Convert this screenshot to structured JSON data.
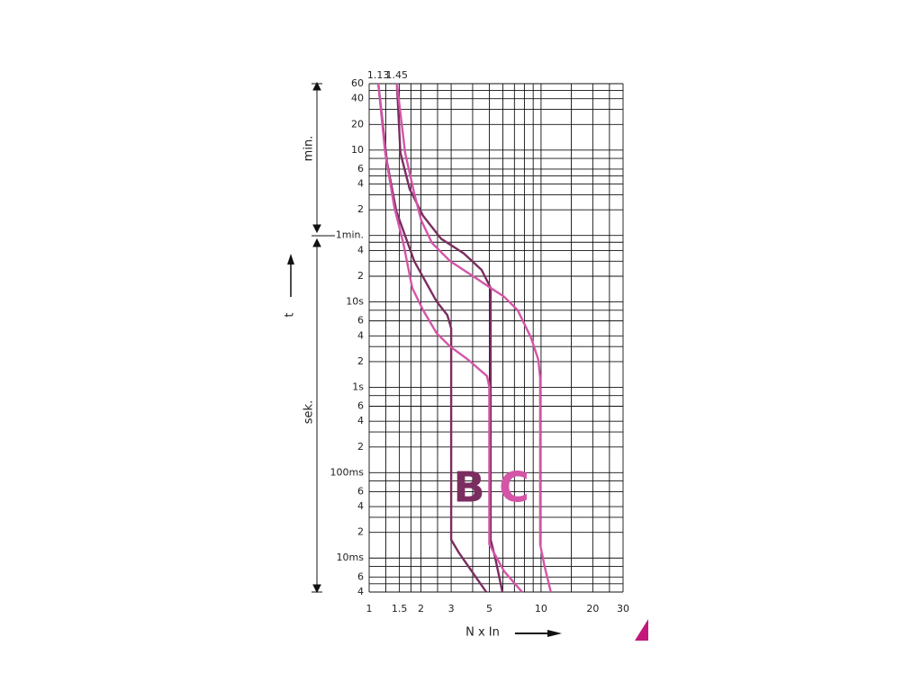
{
  "chart_data": {
    "type": "line",
    "x_label": "N x In",
    "y_label": "t",
    "y_group_labels": [
      "min.",
      "sek."
    ],
    "xscale": "log",
    "yscale": "log",
    "grid": true,
    "xlim": [
      1,
      30
    ],
    "ylim": [
      0.004,
      3600
    ],
    "xticks": [
      1,
      1.5,
      2,
      3,
      5,
      10,
      20,
      30
    ],
    "x_minor_ticks": [
      1.25,
      1.75,
      2.5,
      4,
      6,
      7,
      8,
      9,
      15,
      25
    ],
    "yticks": [
      {
        "value": 3600,
        "label": "60"
      },
      {
        "value": 2400,
        "label": "40"
      },
      {
        "value": 1200,
        "label": "20"
      },
      {
        "value": 600,
        "label": "10"
      },
      {
        "value": 360,
        "label": "6"
      },
      {
        "value": 240,
        "label": "4"
      },
      {
        "value": 120,
        "label": "2"
      },
      {
        "value": 60,
        "label": "1min."
      },
      {
        "value": 40,
        "label": "4"
      },
      {
        "value": 20,
        "label": "2"
      },
      {
        "value": 10,
        "label": "10s"
      },
      6,
      4,
      2,
      {
        "value": 1,
        "label": "1s"
      },
      {
        "value": 0.6,
        "label": "6"
      },
      {
        "value": 0.4,
        "label": "4"
      },
      {
        "value": 0.2,
        "label": "2"
      },
      {
        "value": 0.1,
        "label": "100ms"
      },
      {
        "value": 0.06,
        "label": "6"
      },
      {
        "value": 0.04,
        "label": "4"
      },
      {
        "value": 0.02,
        "label": "2"
      },
      {
        "value": 0.01,
        "label": "10ms"
      },
      {
        "value": 0.006,
        "label": "6"
      },
      {
        "value": 0.004,
        "label": "4"
      }
    ],
    "y_minor_ticks": [
      3000,
      1800,
      480,
      300,
      180,
      50,
      30,
      8,
      3,
      0.8,
      0.3,
      0.08,
      0.03,
      0.008,
      0.005
    ],
    "annotations": [
      {
        "x": 1.13,
        "label": "1.13"
      },
      {
        "x": 1.45,
        "label": "1.45"
      }
    ],
    "series": [
      {
        "name": "B",
        "color": "#7b2d5f",
        "curves": [
          {
            "x": [
              1.13,
              1.27,
              1.44,
              1.83,
              2.47,
              2.85,
              3,
              3,
              3.34,
              4.8
            ],
            "values": [
              3600,
              435,
              115,
              30,
              10.1,
              7.0,
              4.9,
              0.0164,
              0.0114,
              0.004
            ]
          },
          {
            "x": [
              1.45,
              1.52,
              1.72,
              2.06,
              2.62,
              3.55,
              4.51,
              5.09,
              5.09,
              5.41,
              5.96
            ],
            "values": [
              3600,
              556,
              210,
              102,
              55,
              37,
              23.7,
              14.6,
              0.0164,
              0.0101,
              0.004
            ]
          }
        ]
      },
      {
        "name": "C",
        "color": "#d455a8",
        "curves": [
          {
            "x": [
              1.13,
              1.24,
              1.4,
              1.58,
              1.78,
              2.06,
              2.47,
              2.96,
              3.77,
              4.85,
              5,
              5,
              6.1,
              7.76
            ],
            "values": [
              3600,
              556,
              129,
              49,
              14.6,
              8.0,
              4.3,
              3.0,
              2.1,
              1.35,
              1.01,
              0.0145,
              0.007,
              0.004
            ]
          },
          {
            "x": [
              1.45,
              1.62,
              1.83,
              2.01,
              2.32,
              2.96,
              4.25,
              5.09,
              6.1,
              7.31,
              8.75,
              9.64,
              9.88,
              9.88,
              10.5,
              11.4
            ],
            "values": [
              3600,
              556,
              186,
              90,
              49,
              30,
              18.6,
              14.6,
              11.5,
              8.0,
              3.8,
              2.1,
              1.29,
              0.0145,
              0.0079,
              0.004
            ]
          }
        ]
      }
    ]
  }
}
